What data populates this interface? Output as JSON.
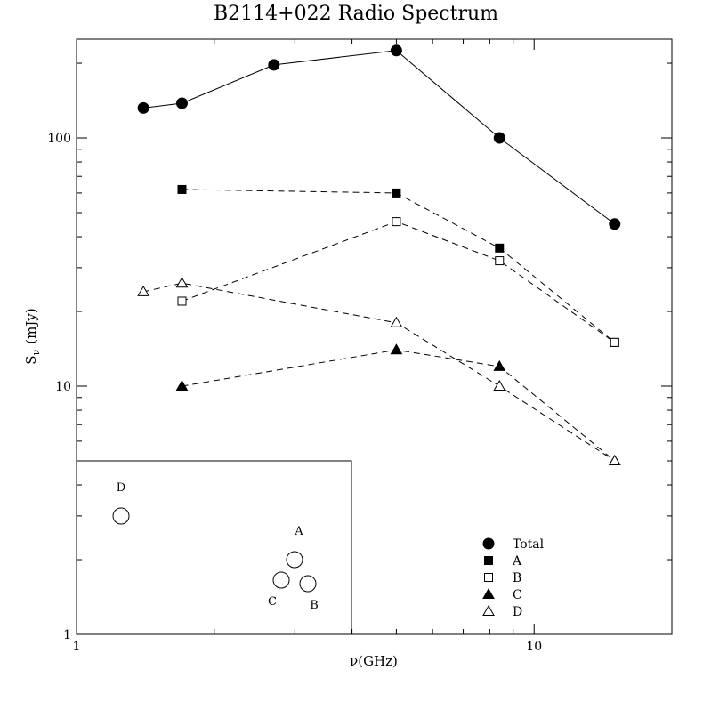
{
  "chart_data": {
    "type": "line",
    "title": "B2114+022 Radio Spectrum",
    "xlabel": "ν(GHz)",
    "ylabel_main": "S",
    "ylabel_sub": "ν",
    "ylabel_unit": "(mJy)",
    "x_scale": "log",
    "y_scale": "log",
    "xlim": [
      1,
      20
    ],
    "ylim": [
      1,
      250
    ],
    "x_tick_labels": [
      "1",
      "10"
    ],
    "y_tick_labels": [
      "1",
      "10",
      "100"
    ],
    "grid": false,
    "legend_position": "bottom-right",
    "series": [
      {
        "name": "Total",
        "marker": "filled-circle",
        "line": "solid",
        "x": [
          1.4,
          1.7,
          2.7,
          5.0,
          8.4,
          15.0
        ],
        "y": [
          132,
          138,
          197,
          225,
          100,
          45
        ]
      },
      {
        "name": "A",
        "marker": "filled-square",
        "line": "dashed",
        "x": [
          1.7,
          5.0,
          8.4,
          15.0
        ],
        "y": [
          62,
          60,
          36,
          15
        ]
      },
      {
        "name": "B",
        "marker": "open-square",
        "line": "dashed",
        "x": [
          1.7,
          5.0,
          8.4,
          15.0
        ],
        "y": [
          22,
          46,
          32,
          15
        ]
      },
      {
        "name": "C",
        "marker": "filled-triangle",
        "line": "dashed",
        "x": [
          1.7,
          5.0,
          8.4,
          15.0
        ],
        "y": [
          10,
          14,
          12,
          5
        ]
      },
      {
        "name": "D",
        "marker": "open-triangle",
        "line": "dashed",
        "x": [
          1.4,
          1.7,
          5.0,
          8.4,
          15.0
        ],
        "y": [
          24,
          26,
          18,
          10,
          5
        ]
      }
    ],
    "inset": {
      "description_labels": [
        "D",
        "A",
        "C",
        "B"
      ]
    }
  }
}
